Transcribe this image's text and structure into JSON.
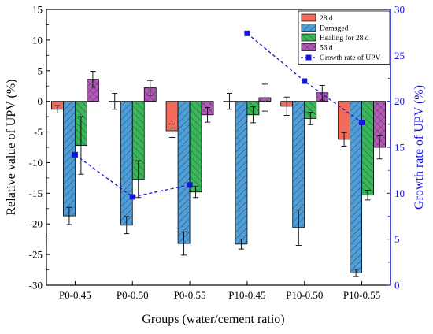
{
  "chart_data": {
    "type": "bar",
    "categories": [
      "P0-0.45",
      "P0-0.50",
      "P0-0.55",
      "P10-0.45",
      "P10-0.50",
      "P10-0.55"
    ],
    "series": [
      {
        "name": "28 d",
        "color": "#f26b5b",
        "hatch": "none",
        "values": [
          -1.3,
          0.0,
          -4.8,
          0.0,
          -0.8,
          -6.2
        ],
        "errors": [
          0.6,
          1.3,
          1.1,
          1.3,
          1.5,
          1.1
        ]
      },
      {
        "name": "Damaged",
        "color": "#4f9ed8",
        "hatch": "diag-right",
        "values": [
          -18.7,
          -20.2,
          -23.2,
          -23.3,
          -20.6,
          -28.0
        ],
        "errors": [
          1.4,
          1.4,
          1.9,
          0.8,
          2.9,
          0.6
        ]
      },
      {
        "name": "Healing for 28 d",
        "color": "#3bb55a",
        "hatch": "diag-left",
        "values": [
          -7.2,
          -12.7,
          -14.8,
          -2.2,
          -2.8,
          -15.3
        ],
        "errors": [
          4.7,
          3.0,
          0.9,
          1.3,
          1.0,
          0.8
        ]
      },
      {
        "name": "56 d",
        "color": "#b45ab8",
        "hatch": "cross",
        "values": [
          3.6,
          2.2,
          -2.2,
          0.6,
          1.4,
          -7.5
        ],
        "errors": [
          1.3,
          1.2,
          1.2,
          2.2,
          1.2,
          1.9
        ]
      }
    ],
    "line_series": {
      "name": "Growth rate of UPV",
      "color": "#1515d6",
      "x_groups": [
        [
          0,
          1,
          2
        ],
        [
          3,
          4,
          5
        ]
      ],
      "values": [
        [
          14.2,
          9.6,
          10.9
        ],
        [
          27.4,
          22.2,
          17.7
        ]
      ]
    },
    "xlabel": "Groups (water/cement ratio)",
    "ylabel": "Relative value of UPV (%)",
    "y2label": "Growth rate of UPV (%)",
    "ylim": [
      -30,
      15
    ],
    "yticks": [
      -30,
      -25,
      -20,
      -15,
      -10,
      -5,
      0,
      5,
      10,
      15
    ],
    "y2lim": [
      0,
      30
    ],
    "y2ticks": [
      0,
      5,
      10,
      15,
      20,
      25,
      30
    ],
    "legend": "top-right"
  }
}
